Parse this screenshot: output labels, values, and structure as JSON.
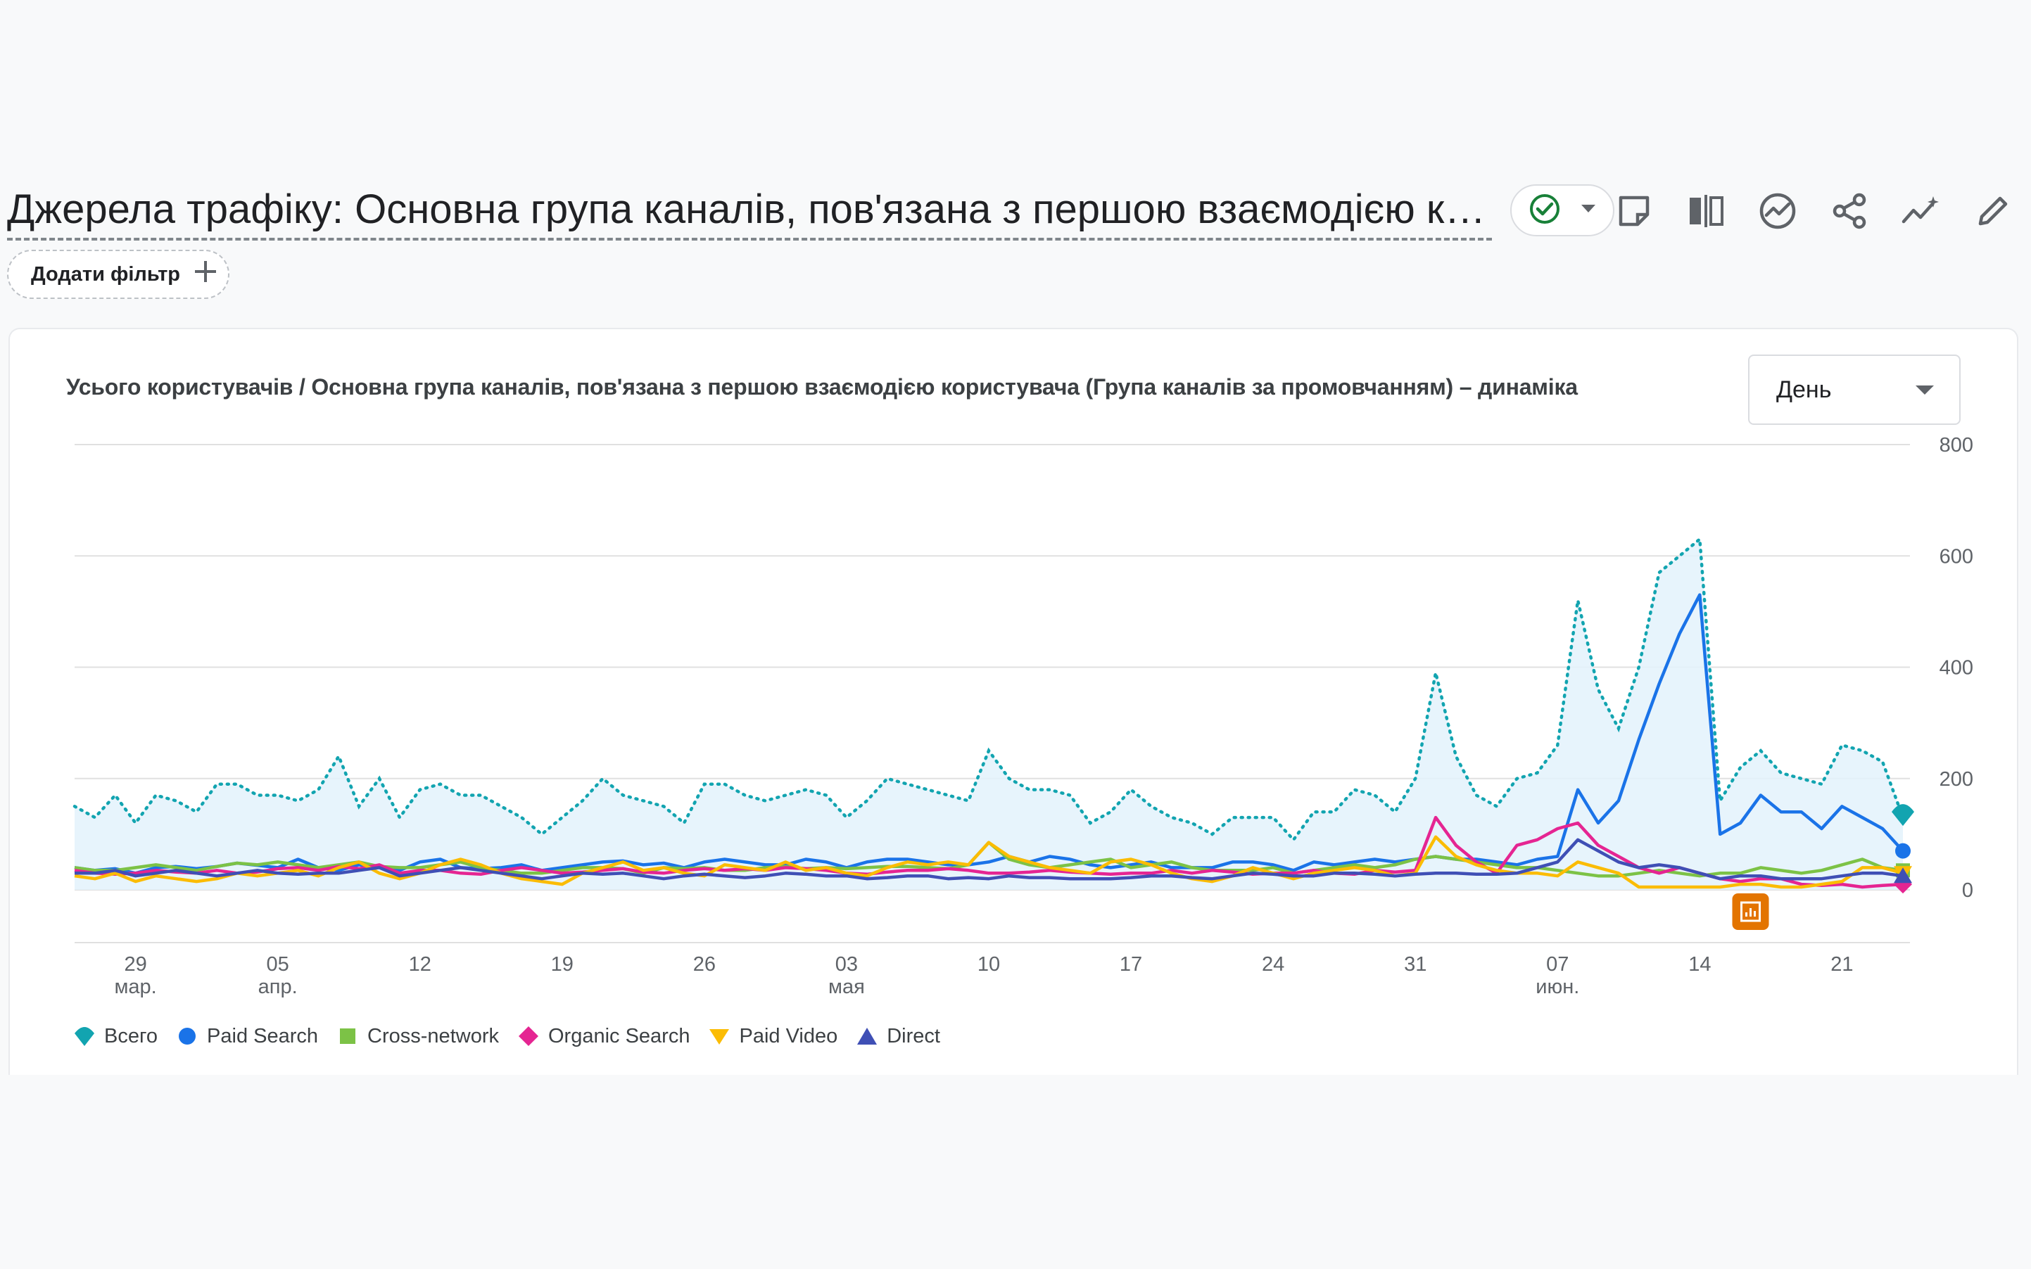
{
  "header": {
    "title": "Джерела трафіку: Основна група каналів, пов'язана з першою взаємодією кори...",
    "status_icon": "check-circle-icon",
    "toolbar_icons": [
      "note-icon",
      "compare-icon",
      "insights-icon",
      "share-icon",
      "trend-icon",
      "edit-icon"
    ]
  },
  "filter": {
    "label": "Додати фільтр"
  },
  "card": {
    "title": "Усього користувачів / Основна група каналів, пов'язана з першою взаємодією користувача (Група каналів за промовчанням) – динаміка",
    "granularity": "День"
  },
  "chart_data": {
    "type": "line",
    "ylim": [
      0,
      800
    ],
    "yticks": [
      0,
      200,
      400,
      600,
      800
    ],
    "x_start": "2024-03-26",
    "x_ticks": [
      {
        "day": "29",
        "month": "мар."
      },
      {
        "day": "05",
        "month": "апр."
      },
      {
        "day": "12",
        "month": ""
      },
      {
        "day": "19",
        "month": ""
      },
      {
        "day": "26",
        "month": ""
      },
      {
        "day": "03",
        "month": "мая"
      },
      {
        "day": "10",
        "month": ""
      },
      {
        "day": "17",
        "month": ""
      },
      {
        "day": "24",
        "month": ""
      },
      {
        "day": "31",
        "month": ""
      },
      {
        "day": "07",
        "month": "июн."
      },
      {
        "day": "14",
        "month": ""
      },
      {
        "day": "21",
        "month": ""
      }
    ],
    "series": [
      {
        "name": "Всего",
        "color": "#12a4b0",
        "style": "dotted-area",
        "marker": "pin",
        "values": [
          150,
          130,
          170,
          120,
          170,
          160,
          140,
          190,
          190,
          170,
          170,
          160,
          180,
          240,
          150,
          200,
          130,
          180,
          190,
          170,
          170,
          150,
          130,
          100,
          130,
          160,
          200,
          170,
          160,
          150,
          120,
          190,
          190,
          170,
          160,
          170,
          180,
          170,
          130,
          160,
          200,
          190,
          180,
          170,
          160,
          250,
          200,
          180,
          180,
          170,
          120,
          140,
          180,
          150,
          130,
          120,
          100,
          130,
          130,
          130,
          90,
          140,
          140,
          180,
          170,
          140,
          200,
          390,
          240,
          170,
          150,
          200,
          210,
          260,
          520,
          360,
          290,
          400,
          570,
          600,
          630,
          160,
          220,
          250,
          210,
          200,
          190,
          260,
          250,
          230,
          130
        ]
      },
      {
        "name": "Paid Search",
        "color": "#1a73e8",
        "style": "line",
        "marker": "circle",
        "values": [
          40,
          35,
          38,
          30,
          40,
          42,
          38,
          42,
          48,
          44,
          40,
          55,
          40,
          35,
          45,
          40,
          35,
          50,
          55,
          40,
          38,
          40,
          45,
          35,
          40,
          45,
          50,
          52,
          45,
          48,
          40,
          50,
          55,
          50,
          45,
          45,
          55,
          50,
          40,
          50,
          55,
          55,
          50,
          45,
          45,
          50,
          60,
          50,
          60,
          55,
          45,
          40,
          45,
          50,
          40,
          40,
          40,
          50,
          50,
          45,
          35,
          50,
          45,
          50,
          55,
          50,
          55,
          60,
          55,
          55,
          50,
          45,
          55,
          60,
          180,
          120,
          160,
          270,
          370,
          460,
          530,
          100,
          120,
          170,
          140,
          140,
          110,
          150,
          130,
          110,
          70
        ]
      },
      {
        "name": "Cross-network",
        "color": "#7cc246",
        "style": "line",
        "marker": "square",
        "values": [
          40,
          35,
          35,
          40,
          45,
          40,
          35,
          42,
          48,
          45,
          50,
          45,
          40,
          45,
          50,
          42,
          40,
          40,
          45,
          50,
          40,
          35,
          30,
          30,
          35,
          40,
          40,
          38,
          30,
          40,
          38,
          40,
          35,
          35,
          40,
          42,
          38,
          40,
          38,
          40,
          42,
          42,
          40,
          38,
          45,
          85,
          55,
          45,
          40,
          45,
          50,
          55,
          40,
          45,
          50,
          40,
          35,
          35,
          35,
          40,
          30,
          35,
          40,
          45,
          40,
          45,
          55,
          60,
          55,
          50,
          45,
          40,
          40,
          35,
          30,
          25,
          25,
          30,
          35,
          30,
          25,
          30,
          30,
          40,
          35,
          30,
          35,
          45,
          55,
          40,
          35
        ]
      },
      {
        "name": "Organic Search",
        "color": "#e52592",
        "style": "line",
        "marker": "diamond",
        "values": [
          35,
          30,
          28,
          30,
          35,
          32,
          30,
          35,
          30,
          32,
          38,
          40,
          35,
          42,
          38,
          45,
          30,
          35,
          35,
          30,
          28,
          35,
          40,
          35,
          30,
          32,
          35,
          38,
          32,
          30,
          35,
          38,
          35,
          38,
          35,
          40,
          38,
          35,
          30,
          28,
          32,
          35,
          35,
          38,
          35,
          30,
          30,
          32,
          35,
          32,
          30,
          28,
          30,
          30,
          35,
          30,
          35,
          32,
          28,
          30,
          30,
          35,
          30,
          28,
          35,
          32,
          35,
          130,
          80,
          50,
          30,
          80,
          90,
          110,
          120,
          80,
          60,
          40,
          30,
          40,
          30,
          20,
          15,
          20,
          20,
          10,
          8,
          10,
          5,
          8,
          10
        ]
      },
      {
        "name": "Paid Video",
        "color": "#fbbc04",
        "style": "line",
        "marker": "triangle-down",
        "values": [
          25,
          20,
          30,
          15,
          25,
          20,
          15,
          20,
          30,
          25,
          30,
          35,
          25,
          40,
          50,
          30,
          20,
          30,
          45,
          55,
          45,
          30,
          20,
          15,
          10,
          30,
          40,
          50,
          35,
          40,
          30,
          25,
          45,
          40,
          35,
          50,
          35,
          40,
          30,
          25,
          40,
          50,
          45,
          50,
          45,
          85,
          60,
          50,
          40,
          35,
          30,
          50,
          55,
          45,
          30,
          20,
          15,
          25,
          40,
          30,
          20,
          30,
          35,
          40,
          35,
          25,
          30,
          95,
          60,
          45,
          35,
          30,
          30,
          25,
          50,
          40,
          30,
          5,
          5,
          5,
          5,
          5,
          10,
          10,
          5,
          5,
          10,
          15,
          40,
          40,
          30
        ]
      },
      {
        "name": "Direct",
        "color": "#3f4fb5",
        "style": "line",
        "marker": "triangle-up",
        "values": [
          30,
          30,
          35,
          25,
          30,
          35,
          30,
          25,
          30,
          35,
          30,
          28,
          30,
          30,
          35,
          40,
          25,
          30,
          35,
          40,
          35,
          30,
          25,
          20,
          25,
          30,
          28,
          30,
          25,
          20,
          25,
          28,
          25,
          22,
          25,
          30,
          28,
          25,
          25,
          20,
          22,
          25,
          25,
          20,
          22,
          20,
          25,
          22,
          22,
          20,
          20,
          20,
          22,
          25,
          25,
          22,
          20,
          25,
          30,
          28,
          25,
          25,
          30,
          30,
          28,
          25,
          28,
          30,
          30,
          28,
          28,
          30,
          40,
          50,
          90,
          70,
          50,
          40,
          45,
          40,
          30,
          20,
          25,
          25,
          20,
          20,
          20,
          25,
          30,
          30,
          25
        ]
      }
    ]
  }
}
